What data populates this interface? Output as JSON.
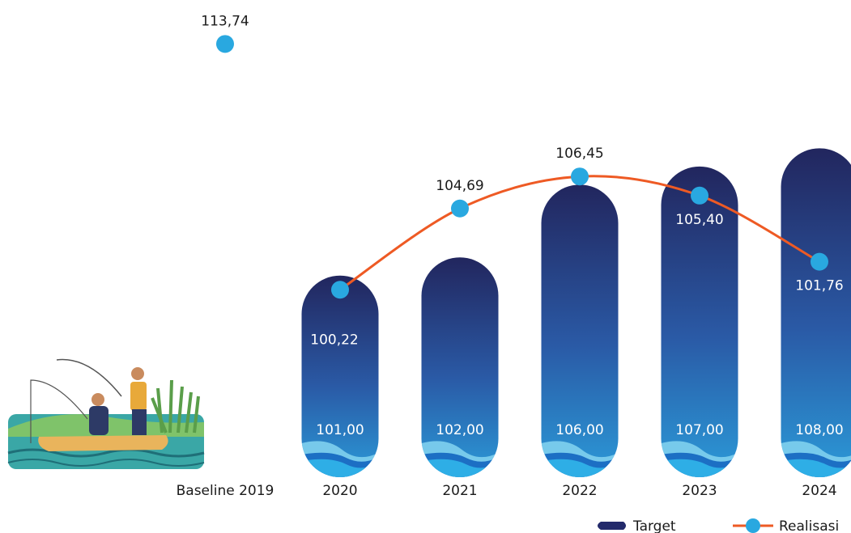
{
  "chart_data": {
    "type": "bar",
    "categories": [
      "2020",
      "2021",
      "2022",
      "2023",
      "2024"
    ],
    "baseline": {
      "label": "Baseline 2019",
      "value": 113.74,
      "value_label": "113,74"
    },
    "series": [
      {
        "name": "Target",
        "type": "bar",
        "color": "#232a6b",
        "values": [
          101,
          102,
          106,
          107,
          108
        ],
        "value_labels": [
          "101,00",
          "102,00",
          "106,00",
          "107,00",
          "108,00"
        ]
      },
      {
        "name": "Realisasi",
        "type": "line",
        "color": "#ee5a24",
        "marker_color": "#29a8e0",
        "values": [
          100.22,
          104.69,
          106.45,
          105.4,
          101.76
        ],
        "value_labels": [
          "100,22",
          "104,69",
          "106,45",
          "105,40",
          "101,76"
        ]
      }
    ],
    "ylim": [
      90,
      115
    ]
  }
}
